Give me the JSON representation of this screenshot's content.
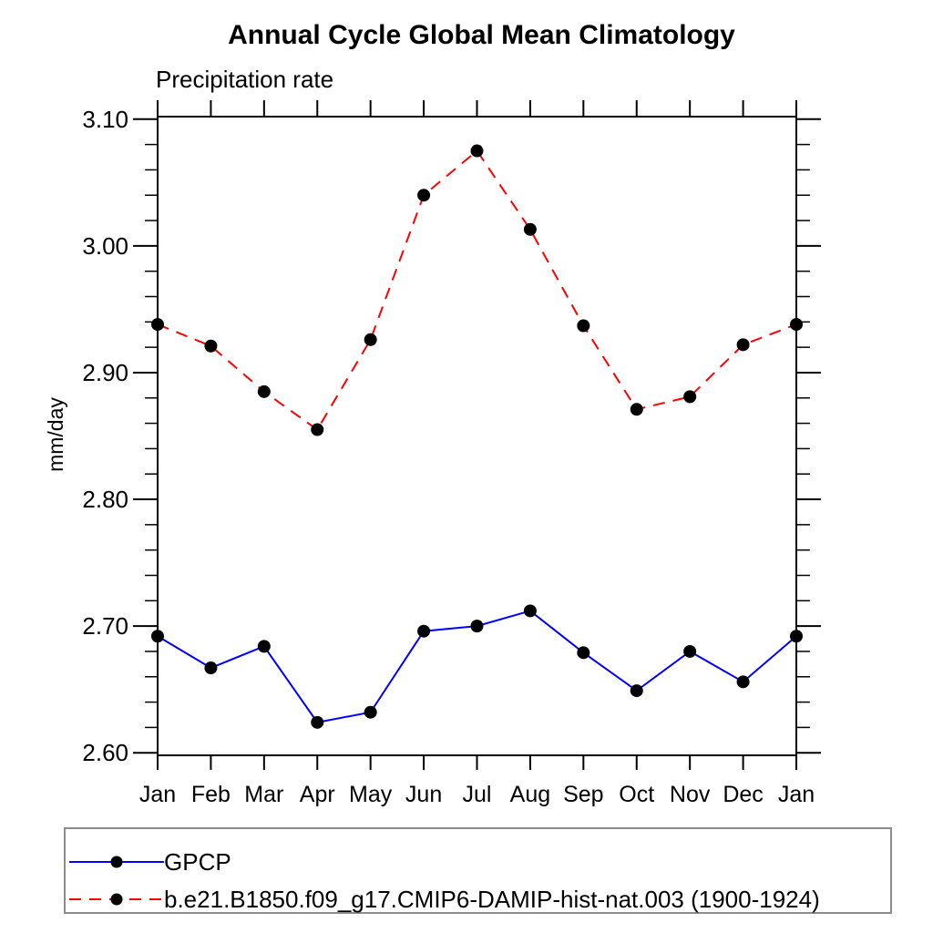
{
  "title": "Annual Cycle Global Mean Climatology",
  "subtitle": "Precipitation rate",
  "y_axis_title": "mm/day",
  "colors": {
    "gpcp_line": "#0000ff",
    "model_line": "#ff0000",
    "marker": "#000000",
    "axis": "#000000",
    "legend_border": "#8c8c8c",
    "background": "#ffffff"
  },
  "legend": {
    "position": "bottom",
    "marker_shape": "filled-circle"
  },
  "chart_data": {
    "type": "line",
    "title": "Annual Cycle Global Mean Climatology",
    "subtitle": "Precipitation rate",
    "xlabel": "",
    "ylabel": "mm/day",
    "categories": [
      "Jan",
      "Feb",
      "Mar",
      "Apr",
      "May",
      "Jun",
      "Jul",
      "Aug",
      "Sep",
      "Oct",
      "Nov",
      "Dec",
      "Jan"
    ],
    "ylim": [
      2.598,
      3.102
    ],
    "y_major_ticks": [
      {
        "value": 3.1,
        "label": "3.10"
      },
      {
        "value": 3.0,
        "label": "3.00"
      },
      {
        "value": 2.9,
        "label": "2.90"
      },
      {
        "value": 2.8,
        "label": "2.80"
      },
      {
        "value": 2.7,
        "label": "2.70"
      },
      {
        "value": 2.6,
        "label": "2.60"
      }
    ],
    "y_minor_step": 0.02,
    "grid": false,
    "legend_position": "bottom",
    "marker": {
      "shape": "circle",
      "color": "#000000",
      "radius": 7
    },
    "series": [
      {
        "name": "GPCP",
        "color": "#0000ff",
        "line_style": "solid",
        "values": [
          2.692,
          2.667,
          2.684,
          2.624,
          2.632,
          2.696,
          2.7,
          2.712,
          2.679,
          2.649,
          2.68,
          2.656,
          2.692
        ]
      },
      {
        "name": "b.e21.B1850.f09_g17.CMIP6-DAMIP-hist-nat.003 (1900-1924)",
        "color": "#ff0000",
        "line_style": "dashed",
        "values": [
          2.938,
          2.921,
          2.885,
          2.855,
          2.926,
          3.04,
          3.075,
          3.013,
          2.937,
          2.871,
          2.881,
          2.922,
          2.938
        ]
      }
    ]
  }
}
